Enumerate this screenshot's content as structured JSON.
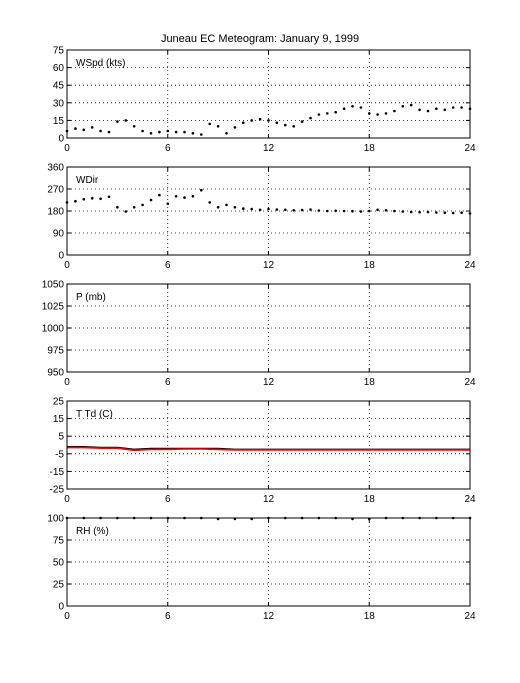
{
  "title": "Juneau EC Meteogram:   January  9, 1999",
  "x_ticks": [
    "0",
    "6",
    "12",
    "18",
    "24"
  ],
  "chart_data": [
    {
      "type": "scatter",
      "id": "wspd",
      "ylabel": "WSpd (kts)",
      "xlim": [
        0,
        24
      ],
      "ylim": [
        0,
        75
      ],
      "yticks": [
        0,
        15,
        30,
        45,
        60,
        75
      ],
      "grid": true,
      "series": [
        {
          "color": "#000000",
          "x": [
            0,
            0.5,
            1,
            1.5,
            2,
            2.5,
            3,
            3.5,
            4,
            4.5,
            5,
            5.5,
            6,
            6.5,
            7,
            7.5,
            8,
            8.5,
            9,
            9.5,
            10,
            10.5,
            11,
            11.5,
            12,
            12.5,
            13,
            13.5,
            14,
            14.5,
            15,
            15.5,
            16,
            16.5,
            17,
            17.5,
            18,
            18.5,
            19,
            19.5,
            20,
            20.5,
            21,
            21.5,
            22,
            22.5,
            23,
            23.5,
            24
          ],
          "y": [
            6,
            8,
            7,
            9,
            6,
            5,
            14,
            15,
            10,
            6,
            4,
            5,
            6,
            5,
            5,
            4,
            3,
            12,
            10,
            4,
            9,
            13,
            15,
            16,
            15,
            13,
            11,
            10,
            14,
            17,
            20,
            21,
            22,
            25,
            27,
            26,
            21,
            20,
            21,
            23,
            27,
            28,
            24,
            23,
            25,
            24,
            26,
            26,
            25
          ]
        }
      ]
    },
    {
      "type": "scatter",
      "id": "wdir",
      "ylabel": "WDir",
      "xlim": [
        0,
        24
      ],
      "ylim": [
        0,
        360
      ],
      "yticks": [
        0,
        90,
        180,
        270,
        360
      ],
      "grid": true,
      "series": [
        {
          "color": "#000000",
          "x": [
            0,
            0.5,
            1,
            1.5,
            2,
            2.5,
            3,
            3.5,
            4,
            4.5,
            5,
            5.5,
            6,
            6.5,
            7,
            7.5,
            8,
            8.5,
            9,
            9.5,
            10,
            10.5,
            11,
            11.5,
            12,
            12.5,
            13,
            13.5,
            14,
            14.5,
            15,
            15.5,
            16,
            16.5,
            17,
            17.5,
            18,
            18.5,
            19,
            19.5,
            20,
            20.5,
            21,
            21.5,
            22,
            22.5,
            23,
            23.5,
            24
          ],
          "y": [
            215,
            220,
            228,
            232,
            230,
            238,
            195,
            178,
            195,
            205,
            225,
            245,
            210,
            240,
            235,
            240,
            265,
            215,
            195,
            205,
            195,
            190,
            188,
            185,
            188,
            186,
            185,
            183,
            184,
            186,
            182,
            180,
            181,
            180,
            179,
            178,
            180,
            185,
            183,
            180,
            178,
            176,
            175,
            176,
            174,
            173,
            172,
            173,
            170
          ]
        }
      ]
    },
    {
      "type": "line",
      "id": "pressure",
      "ylabel": "P (mb)",
      "xlim": [
        0,
        24
      ],
      "ylim": [
        950,
        1050
      ],
      "yticks": [
        950,
        975,
        1000,
        1025,
        1050
      ],
      "grid": true,
      "series": []
    },
    {
      "type": "line",
      "id": "temp",
      "ylabel": "T Td (C)",
      "xlim": [
        0,
        24
      ],
      "ylim": [
        -25,
        25
      ],
      "yticks": [
        -25,
        -15,
        -5,
        5,
        15,
        25
      ],
      "grid": true,
      "series": [
        {
          "color": "#000000",
          "x": [
            0,
            1,
            2,
            3,
            4,
            5,
            6,
            7,
            8,
            9,
            10,
            11,
            12,
            13,
            14,
            15,
            16,
            17,
            18,
            19,
            20,
            21,
            22,
            23,
            24
          ],
          "y": [
            -1,
            -1,
            -1.5,
            -1.5,
            -2.5,
            -2,
            -2,
            -2,
            -2,
            -2,
            -2.5,
            -2.5,
            -2.5,
            -2.5,
            -2.5,
            -2.5,
            -2.5,
            -2.5,
            -2.5,
            -2.5,
            -2.5,
            -2.5,
            -2.5,
            -2.5,
            -2.5
          ]
        },
        {
          "color": "#ff0000",
          "x": [
            0,
            1,
            2,
            3,
            4,
            5,
            6,
            7,
            8,
            9,
            10,
            11,
            12,
            13,
            14,
            15,
            16,
            17,
            18,
            19,
            20,
            21,
            22,
            23,
            24
          ],
          "y": [
            -1.5,
            -1.5,
            -1.8,
            -1.8,
            -3,
            -2.5,
            -2.5,
            -2.3,
            -2.3,
            -2.5,
            -2.8,
            -2.8,
            -2.8,
            -2.8,
            -2.8,
            -2.8,
            -2.8,
            -2.8,
            -2.8,
            -2.8,
            -2.8,
            -2.8,
            -2.8,
            -2.8,
            -2.8
          ]
        }
      ]
    },
    {
      "type": "scatter",
      "id": "rh",
      "ylabel": "RH (%)",
      "xlim": [
        0,
        24
      ],
      "ylim": [
        0,
        100
      ],
      "yticks": [
        0,
        25,
        50,
        75,
        100
      ],
      "grid": true,
      "series": [
        {
          "color": "#000000",
          "x": [
            0,
            1,
            2,
            3,
            4,
            5,
            6,
            7,
            8,
            9,
            10,
            11,
            12,
            13,
            14,
            15,
            16,
            17,
            18,
            19,
            20,
            21,
            22,
            23,
            24
          ],
          "y": [
            100,
            100,
            100,
            100,
            100,
            100,
            100,
            100,
            100,
            99,
            99,
            99,
            100,
            100,
            100,
            100,
            100,
            99,
            99,
            100,
            100,
            100,
            100,
            100,
            100
          ]
        }
      ]
    }
  ]
}
